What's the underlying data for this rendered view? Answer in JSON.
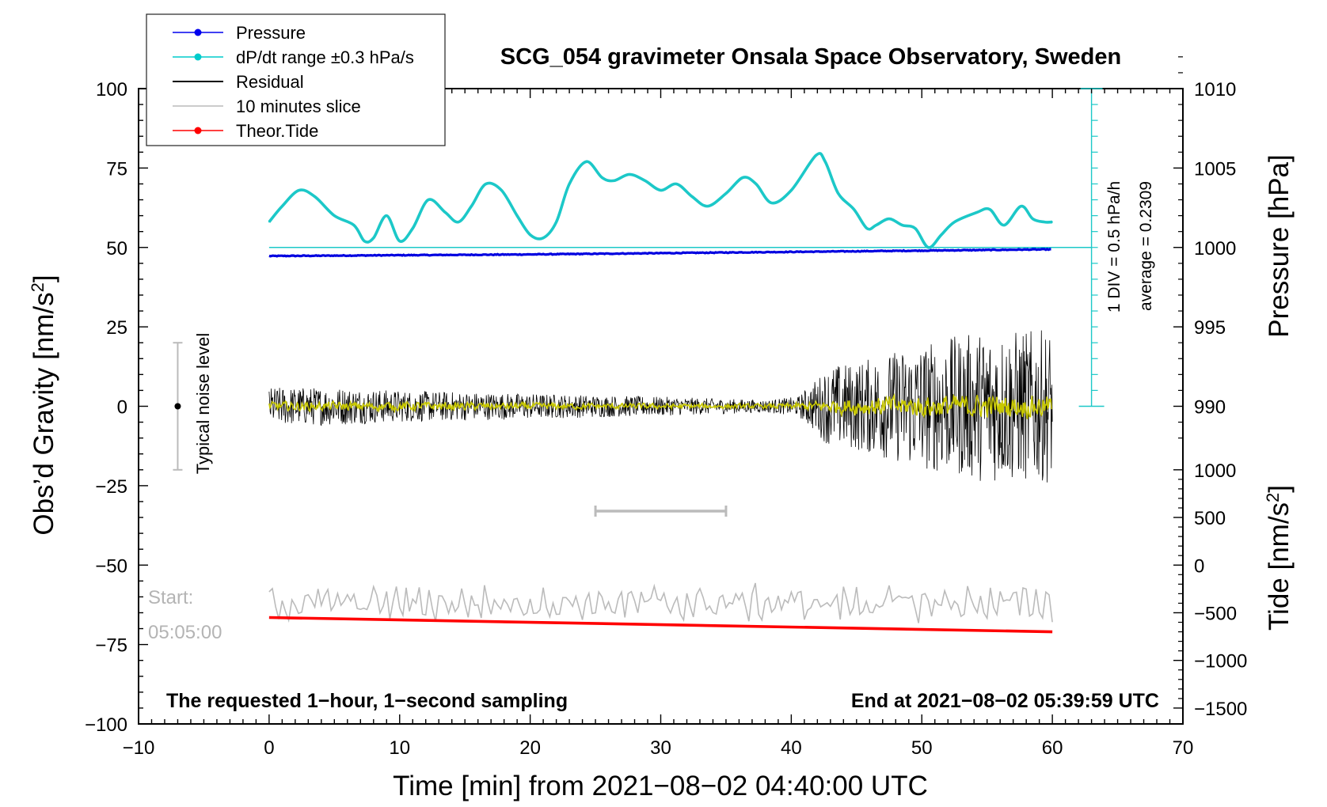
{
  "chart_data": {
    "type": "line",
    "title": "SCG_054 gravimeter Onsala Space Observatory, Sweden",
    "xlabel": "Time [min] from 2021−08−02 04:40:00 UTC",
    "ylabel_left": "Obs’d Gravity [nm/s",
    "ylabel_left_sup": "2",
    "ylabel_left_tail": "]",
    "ylabel_right_top": "Pressure [hPa]",
    "ylabel_right_bottom": "Tide [nm/s",
    "ylabel_right_bottom_sup": "2",
    "ylabel_right_bottom_tail": "]",
    "xlim": [
      -10,
      70
    ],
    "ylim": [
      -100,
      100
    ],
    "x_ticks": [
      -10,
      0,
      10,
      20,
      30,
      40,
      50,
      60,
      70
    ],
    "x_tick_labels": [
      "−10",
      "0",
      "10",
      "20",
      "30",
      "40",
      "50",
      "60",
      "70"
    ],
    "y_ticks": [
      100,
      75,
      50,
      25,
      0,
      -25,
      -50,
      -75,
      -100
    ],
    "y_tick_labels": [
      "100",
      "75",
      "50",
      "25",
      "0",
      "−25",
      "−50",
      "−75",
      "−100"
    ],
    "pressure_axis": {
      "values": [
        1010,
        1005,
        1000,
        995,
        990
      ],
      "labels": [
        "1010",
        "1005",
        "1000",
        "995",
        "990"
      ],
      "gravity_equiv_at_1000": 50,
      "hpa_per_gravity_unit": 0.2
    },
    "tide_axis": {
      "values": [
        1000,
        500,
        0,
        -500,
        -1000,
        -1500
      ],
      "labels": [
        "1000",
        "500",
        "0",
        "−500",
        "−1000",
        "−1500"
      ],
      "gravity_equiv_at_0": -50,
      "tide_per_gravity_unit": 33.333
    },
    "legend": [
      {
        "label": "Pressure",
        "color": "#0000ee",
        "marker": true
      },
      {
        "label": "dP/dt range ±0.3 hPa/s",
        "color": "#00cccc",
        "marker": true
      },
      {
        "label": "Residual",
        "color": "#000000",
        "marker": false
      },
      {
        "label": "10 minutes slice",
        "color": "#bbbbbb",
        "marker": false
      },
      {
        "label": "Theor.Tide",
        "color": "#ff0000",
        "marker": true
      }
    ],
    "series": [
      {
        "name": "dP/dt",
        "color": "#1cc8c8",
        "x": [
          0,
          1,
          2.3,
          3.5,
          5,
          6.5,
          7.3,
          8,
          9,
          10,
          11,
          12.2,
          13.5,
          14.5,
          15.5,
          16.6,
          17.8,
          19,
          20,
          21,
          22,
          23,
          24.3,
          25.5,
          26.4,
          27.6,
          28.8,
          30,
          31.2,
          32.4,
          33.6,
          35,
          36.3,
          37.3,
          38.5,
          40,
          41.9,
          42.6,
          43.6,
          44.8,
          45.8,
          46.5,
          47.5,
          48.5,
          49.5,
          50.5,
          51.5,
          52.5,
          54.2,
          55.2,
          56.3,
          57.6,
          58.5,
          59.4,
          60
        ],
        "values": [
          58,
          63,
          68,
          66,
          60,
          57,
          52,
          53,
          60,
          52,
          56,
          65,
          61,
          58,
          63,
          70,
          68,
          60,
          54,
          53,
          58,
          70,
          77,
          72,
          71,
          73,
          71,
          68,
          70,
          66,
          63,
          67,
          72,
          70,
          64,
          68,
          79,
          77,
          67,
          62,
          56,
          57,
          59,
          57,
          56,
          50,
          54,
          58,
          61,
          62,
          57,
          63,
          59,
          58,
          58
        ]
      },
      {
        "name": "dP/dt average line",
        "color": "#1cc8c8",
        "x": [
          0,
          63
        ],
        "values": [
          50,
          50
        ]
      },
      {
        "name": "Pressure",
        "color": "#0000e0",
        "x": [
          0,
          20,
          40,
          60
        ],
        "values": [
          47.3,
          47.8,
          48.6,
          49.4
        ]
      },
      {
        "name": "Residual",
        "color": "#000000",
        "note": "1-second sampled residual; envelope amplitude (nm/s^2) by time",
        "envelope_x": [
          0,
          5,
          10,
          20,
          30,
          38,
          40.5,
          43,
          45,
          50,
          55,
          60
        ],
        "envelope_amp": [
          6,
          6,
          5,
          4,
          3,
          2,
          3,
          13,
          14,
          20,
          24,
          24
        ]
      },
      {
        "name": "Smoothed residual",
        "color": "#c8c800",
        "envelope_x": [
          0,
          10,
          20,
          30,
          38,
          40.5,
          45,
          50,
          55,
          60
        ],
        "envelope_amp": [
          2,
          2,
          1.5,
          1.2,
          1,
          1.5,
          4,
          5,
          5,
          5
        ]
      },
      {
        "name": "10 minutes slice",
        "color": "#bbbbbb",
        "base": -62,
        "amplitude": 4
      },
      {
        "name": "Theor.Tide",
        "color": "#ff0000",
        "x": [
          0,
          60
        ],
        "values": [
          -66.5,
          -71
        ]
      }
    ],
    "annotations": {
      "noise_label": "Typical noise level",
      "noise_bar_range": [
        -20,
        20
      ],
      "noise_bar_x": -7,
      "slice_bar": {
        "x_start": 25,
        "x_end": 35,
        "y": -33
      },
      "start_label_1": "Start:",
      "start_label_2": "05:05:00",
      "scale_label_1": "1 DIV = 0.5 hPa/h",
      "scale_label_2": "average = 0.2309",
      "scale_bar": {
        "x": 63,
        "y_top": 100,
        "y_bottom": 0,
        "divisions": 20
      },
      "bottom_left": "The requested 1−hour, 1−second sampling",
      "bottom_right": "End at 2021−08−02 05:39:59 UTC"
    }
  }
}
